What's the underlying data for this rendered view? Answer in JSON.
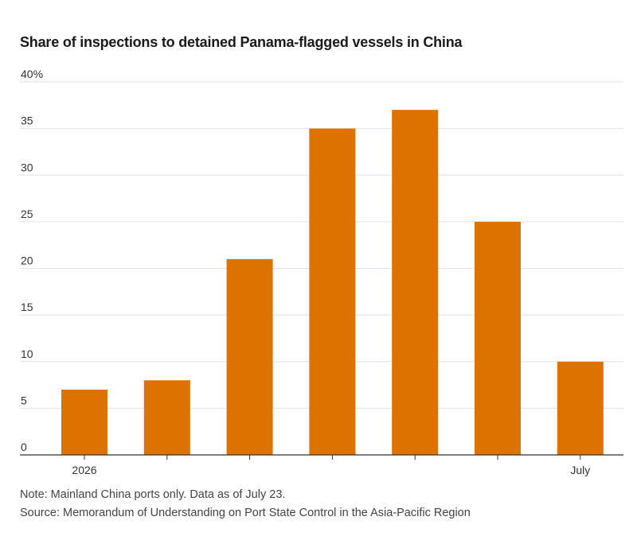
{
  "chart_data": {
    "type": "bar",
    "title": "Share of inspections to detained Panama-flagged vessels in China",
    "categories": [
      "2026",
      "",
      "",
      "",
      "",
      "",
      "July"
    ],
    "values": [
      7,
      8,
      21,
      35,
      37,
      25,
      10
    ],
    "ylim": [
      0,
      40
    ],
    "yticks": [
      0,
      5,
      10,
      15,
      20,
      25,
      30,
      35,
      40
    ],
    "ytick_labels": [
      "0",
      "5",
      "10",
      "15",
      "20",
      "25",
      "30",
      "35",
      "40%"
    ],
    "xlabel": "",
    "ylabel": "",
    "grid": true,
    "bar_color": "#dc7300",
    "grid_color": "#e3e3e3",
    "axis_color": "#333333"
  },
  "notes": {
    "note": "Note: Mainland China ports only. Data as of July 23.",
    "source": "Source: Memorandum of Understanding on Port State Control in the Asia-Pacific Region"
  }
}
